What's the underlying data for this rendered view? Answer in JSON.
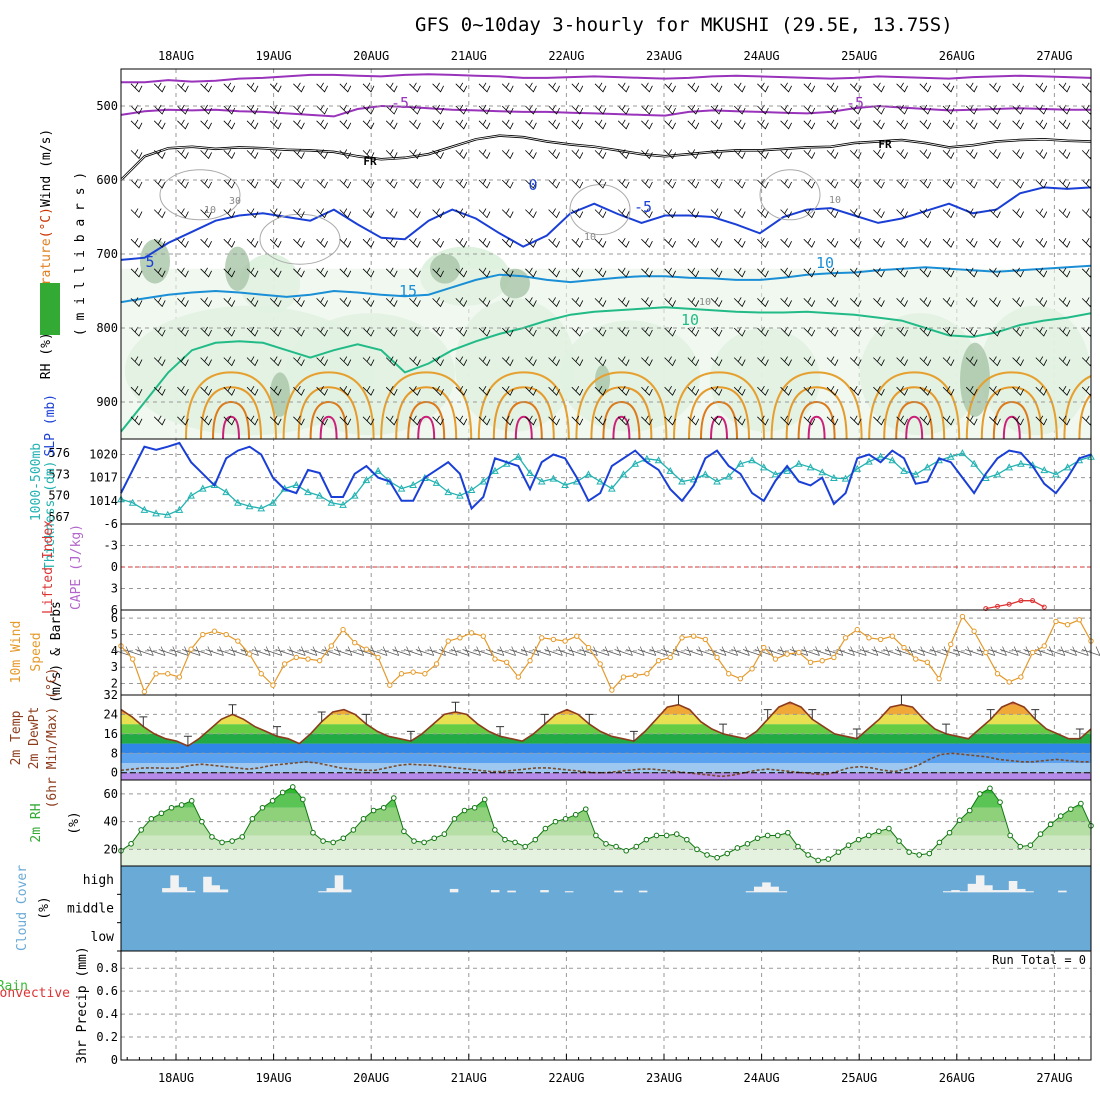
{
  "title": "GFS 0~10day 3-hourly for MKUSHI (29.5E, 13.75S)",
  "chart_data": {
    "type": "meteogram",
    "dates": [
      "18AUG",
      "19AUG",
      "20AUG",
      "21AUG",
      "22AUG",
      "23AUG",
      "24AUG",
      "25AUG",
      "26AUG",
      "27AUG"
    ],
    "colors": {
      "wind": "#000000",
      "temp": "#cc3300",
      "rh": "#00aa00",
      "slp": "#1a3fd6",
      "thick": "#22b2b2",
      "cape": "#b266cc",
      "li": "#dd3333",
      "w10": "#e59a2a",
      "t2m": "#8c3c1c",
      "rh2m": "#33aa33",
      "cloud": "#6aaad6",
      "precip": "#33bb33",
      "conv": "#dd3333"
    },
    "panels": [
      {
        "id": "upper_air",
        "ylabel_parts": [
          "RH (%)",
          "Temperature",
          "(°C)",
          "Wind (m/s)"
        ],
        "ylabel2": "( m i l l i b a r s )",
        "yticks": [
          500,
          600,
          700,
          800,
          900
        ],
        "ylim": [
          450,
          950
        ],
        "contour_labels": [
          "-5",
          "-5",
          "FR",
          "FR",
          "0",
          "-5",
          "10",
          "10",
          "15",
          "10",
          "10",
          "30",
          "10",
          "5",
          "10"
        ],
        "isotherms": [
          {
            "label": "-5",
            "color": "#9933bb",
            "p": [
              468,
              468,
              465,
              467,
              466,
              463,
              462,
              460,
              458,
              458,
              459,
              460,
              458,
              457,
              458,
              459,
              460,
              462,
              462,
              461,
              460,
              461,
              462,
              463,
              462,
              460,
              459,
              460,
              461,
              462,
              463,
              462,
              460,
              461,
              462,
              463,
              461,
              460,
              459,
              460,
              461,
              462
            ]
          },
          {
            "label": "-5",
            "color": "#9933bb",
            "p": [
              512,
              507,
              505,
              506,
              505,
              507,
              508,
              510,
              512,
              514,
              504,
              500,
              501,
              503,
              505,
              506,
              507,
              508,
              508,
              509,
              510,
              511,
              512,
              513,
              508,
              506,
              507,
              508,
              509,
              510,
              508,
              503,
              500,
              502,
              504,
              506,
              505,
              504,
              503,
              504,
              505,
              505
            ]
          },
          {
            "label": "FR",
            "color": "#000000",
            "p": [
              600,
              568,
              557,
              555,
              558,
              556,
              557,
              559,
              560,
              562,
              568,
              572,
              570,
              565,
              555,
              545,
              540,
              542,
              548,
              552,
              555,
              560,
              565,
              568,
              565,
              562,
              560,
              560,
              558,
              556,
              555,
              550,
              548,
              546,
              550,
              556,
              553,
              548,
              546,
              545,
              547,
              548
            ]
          },
          {
            "label": "0",
            "color": "#1a3fd6",
            "p": [
              708,
              705,
              685,
              670,
              655,
              648,
              645,
              650,
              655,
              640,
              660,
              678,
              680,
              655,
              640,
              652,
              672,
              690,
              675,
              645,
              632,
              646,
              658,
              648,
              648,
              650,
              660,
              672,
              650,
              640,
              638,
              648,
              658,
              652,
              642,
              632,
              645,
              640,
              618,
              610,
              612,
              610
            ]
          },
          {
            "label": "5",
            "color": "#1a8fd6",
            "p": [
              765,
              760,
              755,
              752,
              750,
              752,
              755,
              758,
              755,
              750,
              752,
              755,
              757,
              755,
              745,
              735,
              728,
              730,
              735,
              738,
              735,
              732,
              730,
              730,
              732,
              733,
              735,
              735,
              732,
              728,
              726,
              725,
              722,
              720,
              718,
              720,
              722,
              724,
              722,
              720,
              718,
              716
            ]
          },
          {
            "label": "15",
            "color": "#22bb88",
            "p": [
              940,
              900,
              860,
              830,
              820,
              818,
              820,
              830,
              840,
              830,
              822,
              830,
              860,
              848,
              830,
              818,
              808,
              800,
              790,
              782,
              778,
              776,
              774,
              772,
              774,
              776,
              778,
              779,
              779,
              778,
              780,
              782,
              786,
              790,
              800,
              810,
              812,
              806,
              796,
              790,
              786,
              780
            ]
          }
        ]
      },
      {
        "id": "slp_thick",
        "ylabel_parts": [
          "1000-500mb",
          "Thickness (dm)",
          "SLP (mb)"
        ],
        "yticks_left": [
          567,
          570,
          573,
          576
        ],
        "ylim_left": [
          566,
          578
        ],
        "yticks_right": [
          1014,
          1017,
          1020
        ],
        "ylim_right": [
          1011,
          1022
        ],
        "slp": [
          1015,
          1018,
          1021,
          1020.6,
          1021,
          1021.5,
          1019,
          1017.5,
          1016,
          1019.5,
          1020.5,
          1021,
          1020,
          1017,
          1015.5,
          1015,
          1018,
          1017.6,
          1014.5,
          1014.5,
          1017.5,
          1018.5,
          1017,
          1016.5,
          1014,
          1014,
          1017,
          1018,
          1019,
          1017.5,
          1013,
          1014.5,
          1019.5,
          1019,
          1018.5,
          1015.5,
          1019,
          1020,
          1019.5,
          1017,
          1014,
          1015,
          1018.5,
          1019.5,
          1020.5,
          1019,
          1018,
          1015.5,
          1014,
          1016,
          1019.5,
          1020.5,
          1018.5,
          1017.5,
          1015,
          1014,
          1016.6,
          1018.5,
          1016.5,
          1016,
          1017,
          1013.6,
          1015,
          1019.5,
          1020,
          1019,
          1020.5,
          1019.5,
          1016.2,
          1016.5,
          1019.5,
          1019,
          1017,
          1015,
          1017.5,
          1019.5,
          1020.5,
          1020.2,
          1018.5,
          1016.2,
          1015,
          1017,
          1019.5,
          1020
        ],
        "thickness": [
          569.5,
          569,
          568,
          567.5,
          567.3,
          568,
          570,
          571,
          571.5,
          570.5,
          569,
          568.5,
          568.2,
          569,
          571,
          571.5,
          570.5,
          570,
          569,
          568.7,
          570,
          572.2,
          573.5,
          572,
          571,
          571.5,
          572.5,
          571.8,
          570.5,
          570,
          570.8,
          572,
          573.5,
          574.5,
          575.5,
          573.2,
          572,
          572.4,
          571.5,
          572,
          573,
          572,
          571,
          573,
          574.5,
          575.2,
          575,
          573.5,
          572,
          572.3,
          573,
          572,
          572.7,
          574.5,
          575,
          574,
          573,
          573.5,
          574.5,
          574,
          573.3,
          572.5,
          572.4,
          573.8,
          574.8,
          575.5,
          575,
          573.5,
          573,
          574,
          575,
          575.5,
          576,
          574.5,
          572.5,
          573,
          574,
          574.5,
          574.3,
          573.6,
          573,
          574,
          575,
          575.5
        ]
      },
      {
        "id": "cape_li",
        "ylabel_parts": [
          "CAPE (J/kg)",
          "Lifted Index"
        ],
        "yticks": [
          6,
          3,
          0,
          -3,
          -6
        ],
        "ylim": [
          6,
          -6
        ],
        "li_red_dashed_at": 0,
        "li": [
          null,
          null,
          null,
          null,
          null,
          null,
          null,
          null,
          null,
          null,
          null,
          null,
          null,
          null,
          null,
          null,
          null,
          null,
          null,
          null,
          null,
          null,
          null,
          null,
          null,
          null,
          null,
          null,
          null,
          null,
          null,
          null,
          null,
          null,
          null,
          null,
          null,
          null,
          null,
          null,
          null,
          null,
          null,
          null,
          null,
          null,
          null,
          null,
          null,
          null,
          null,
          null,
          null,
          null,
          null,
          null,
          null,
          null,
          null,
          null,
          null,
          null,
          null,
          null,
          null,
          null,
          null,
          null,
          null,
          null,
          null,
          null,
          null,
          null,
          5.8,
          5.5,
          5.2,
          4.7,
          4.7,
          5.6,
          null,
          null,
          null,
          null
        ]
      },
      {
        "id": "wind10m",
        "ylabel_parts": [
          "10m Wind",
          "Speed",
          "(m/s) & Barbs"
        ],
        "yticks": [
          2,
          3,
          4,
          5,
          6
        ],
        "ylim": [
          1.3,
          6.5
        ],
        "speed": [
          4.3,
          3.5,
          1.5,
          2.6,
          2.6,
          2.4,
          4.1,
          5,
          5.2,
          5,
          4.6,
          3.8,
          2.6,
          1.9,
          3.2,
          3.6,
          3.5,
          3.4,
          4.3,
          5.3,
          4.5,
          4.1,
          3.6,
          1.9,
          2.6,
          2.7,
          2.6,
          3.2,
          4.6,
          4.8,
          5.1,
          4.9,
          3.5,
          3.3,
          2.4,
          3.4,
          4.8,
          4.7,
          4.6,
          4.9,
          4.2,
          3.2,
          1.6,
          2.4,
          2.5,
          2.6,
          3.4,
          3.6,
          4.8,
          4.9,
          4.7,
          3.6,
          2.6,
          2.3,
          2.9,
          4.2,
          3.5,
          3.8,
          3.9,
          3.3,
          3.4,
          3.6,
          4.8,
          5.3,
          4.8,
          4.7,
          4.9,
          4.2,
          3.5,
          3.3,
          2.3,
          4.4,
          6.1,
          5.2,
          3.9,
          2.6,
          2.1,
          2.4,
          3.9,
          4.3,
          5.8,
          5.6,
          5.9,
          4.6
        ]
      },
      {
        "id": "temp2m",
        "ylabel_parts": [
          "2m Temp",
          "2m DewPt",
          "(6hr Min/Max) (°C)"
        ],
        "yticks": [
          0,
          8,
          16,
          24,
          32
        ],
        "ylim": [
          -3,
          32
        ],
        "temp": [
          26,
          23,
          19,
          16,
          14,
          13,
          11,
          14,
          18,
          22,
          24,
          22,
          19,
          17,
          15,
          14,
          12,
          16,
          21,
          25,
          26,
          24,
          20,
          17,
          15,
          14,
          13,
          16,
          20,
          24,
          25,
          24,
          20,
          17,
          15,
          14,
          13,
          16,
          20,
          24,
          26,
          24,
          20,
          17,
          15,
          14,
          13,
          17,
          22,
          27,
          28,
          26,
          21,
          18,
          16,
          15,
          14,
          17,
          22,
          27,
          29,
          27,
          22,
          19,
          16,
          15,
          14,
          18,
          22,
          27,
          28,
          27,
          22,
          18,
          16,
          15,
          14,
          18,
          22,
          27,
          29,
          27,
          22,
          18,
          16,
          14,
          14,
          18
        ],
        "dewpt": [
          1,
          1.5,
          2,
          2,
          1.8,
          2,
          3,
          3.5,
          3,
          2.5,
          2,
          1.5,
          2,
          3,
          3.5,
          4,
          4.5,
          4,
          3,
          2,
          1.5,
          1,
          1,
          2,
          3,
          3.5,
          3.2,
          3,
          2.5,
          2,
          1.5,
          1,
          0.5,
          0.5,
          1,
          1.5,
          2,
          2,
          1.5,
          1,
          0.5,
          0,
          0,
          0.5,
          1,
          1.5,
          1.5,
          1,
          0.5,
          0,
          -0.5,
          -1,
          -1.5,
          -1,
          0,
          1,
          1.5,
          1,
          0.5,
          0,
          -0.5,
          -0.8,
          0.5,
          2,
          2.5,
          2,
          1,
          0.5,
          1.5,
          3,
          5.5,
          7.5,
          8,
          7.5,
          7,
          6.5,
          5.5,
          5,
          4.5,
          4.5,
          5,
          5.5,
          5,
          4.5,
          4.5
        ]
      },
      {
        "id": "rh2m",
        "ylabel_parts": [
          "2m RH",
          "(%)"
        ],
        "yticks": [
          20,
          40,
          60
        ],
        "ylim": [
          8,
          70
        ],
        "rh": [
          19,
          24,
          34,
          42,
          46,
          50,
          52,
          55,
          40,
          29,
          25,
          26,
          29,
          42,
          50,
          55,
          61,
          65,
          56,
          32,
          26,
          25,
          28,
          34,
          42,
          48,
          50,
          57,
          33,
          26,
          25,
          28,
          31,
          42,
          48,
          50,
          56,
          34,
          27,
          25,
          22,
          27,
          35,
          40,
          42,
          45,
          49,
          30,
          24,
          22,
          19,
          22,
          27,
          30,
          30,
          31,
          27,
          20,
          16,
          14,
          17,
          21,
          24,
          28,
          30,
          30,
          32,
          22,
          16,
          12,
          13,
          18,
          23,
          27,
          30,
          33,
          35,
          26,
          18,
          16,
          17,
          25,
          32,
          41,
          48,
          60,
          64,
          54,
          30,
          22,
          23,
          31,
          38,
          44,
          49,
          53,
          37
        ]
      },
      {
        "id": "cloud",
        "ylabel_parts": [
          "Cloud Cover",
          "(%)"
        ],
        "levels": [
          "high",
          "middle",
          "low"
        ],
        "high": [
          0,
          0,
          0,
          0,
          0,
          15,
          60,
          18,
          5,
          0,
          55,
          25,
          10,
          0,
          0,
          0,
          0,
          0,
          0,
          0,
          0,
          0,
          0,
          0,
          4,
          15,
          60,
          10,
          0,
          0,
          0,
          0,
          0,
          0,
          0,
          0,
          0,
          0,
          0,
          0,
          12,
          0,
          0,
          0,
          0,
          8,
          0,
          6,
          0,
          0,
          0,
          8,
          0,
          0,
          4,
          0,
          0,
          0,
          0,
          0,
          6,
          0,
          0,
          6,
          0,
          0,
          0,
          0,
          0,
          0,
          0,
          0,
          0,
          0,
          0,
          0,
          4,
          20,
          35,
          20,
          4,
          0,
          0,
          0,
          0,
          0,
          0,
          0,
          0,
          0,
          0,
          0,
          0,
          0,
          0,
          0,
          0,
          0,
          0,
          0,
          4,
          8,
          4,
          30,
          60,
          25,
          8,
          8,
          40,
          12,
          4,
          0,
          0,
          0,
          6,
          0,
          0,
          0
        ]
      },
      {
        "id": "precip",
        "ylabel_parts": [
          "Total / Rain",
          "Convective",
          "3hr Precip (mm)"
        ],
        "yticks": [
          0,
          0.2,
          0.4,
          0.6,
          0.8
        ],
        "ylim": [
          0,
          0.95
        ],
        "run_total": "Run Total = 0"
      }
    ]
  }
}
